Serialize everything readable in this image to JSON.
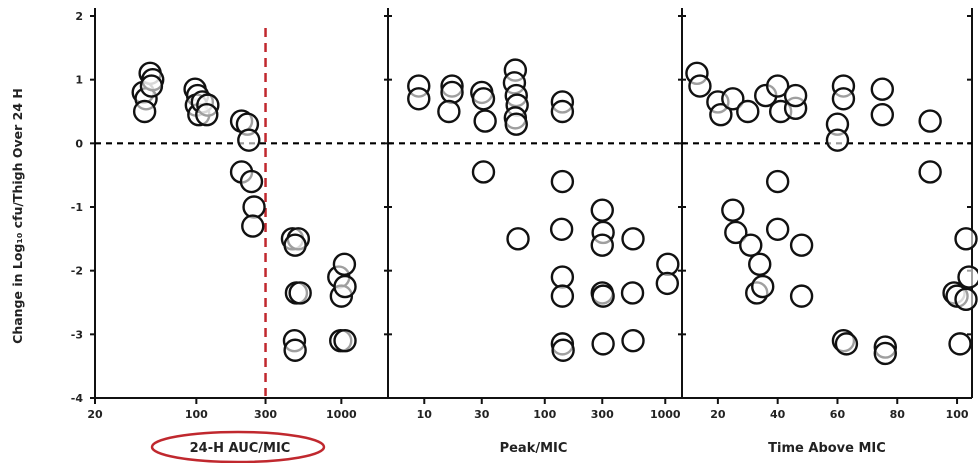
{
  "ylabel": "Change in Log₁₀ cfu/Thigh Over 24 H",
  "annotation_color": "#c0282e",
  "chart_data": [
    {
      "type": "scatter",
      "xlabel": "24-H AUC/MIC",
      "xlabel_circled": true,
      "x_scale": "log",
      "xlim": [
        20,
        2000
      ],
      "ylim": [
        -4,
        2
      ],
      "x_ticks": [
        20,
        100,
        300,
        1000
      ],
      "x_tick_labels": [
        "20",
        "100",
        "300",
        "1000"
      ],
      "y_ticks": [
        2,
        1,
        0,
        -1,
        -2,
        -3,
        -4
      ],
      "y_tick_labels": [
        "2",
        "1",
        "0",
        "-1",
        "-2",
        "-3",
        "-4"
      ],
      "reference_lines": [
        {
          "axis": "y",
          "value": 0,
          "style": "dashed",
          "color": "#000000"
        },
        {
          "axis": "x",
          "value": 300,
          "style": "dashed",
          "color": "#c0282e"
        }
      ],
      "points": [
        [
          43,
          0.8
        ],
        [
          45,
          0.7
        ],
        [
          44,
          0.5
        ],
        [
          48,
          1.1
        ],
        [
          50,
          1.0
        ],
        [
          49,
          0.9
        ],
        [
          98,
          0.85
        ],
        [
          102,
          0.75
        ],
        [
          100,
          0.6
        ],
        [
          104,
          0.45
        ],
        [
          110,
          0.65
        ],
        [
          120,
          0.6
        ],
        [
          118,
          0.45
        ],
        [
          205,
          0.35
        ],
        [
          225,
          0.3
        ],
        [
          230,
          0.05
        ],
        [
          205,
          -0.45
        ],
        [
          240,
          -0.6
        ],
        [
          250,
          -1.0
        ],
        [
          245,
          -1.3
        ],
        [
          460,
          -1.5
        ],
        [
          505,
          -1.5
        ],
        [
          480,
          -1.6
        ],
        [
          490,
          -2.35
        ],
        [
          520,
          -2.35
        ],
        [
          475,
          -3.1
        ],
        [
          480,
          -3.25
        ],
        [
          960,
          -2.1
        ],
        [
          1050,
          -1.9
        ],
        [
          1000,
          -2.4
        ],
        [
          1060,
          -2.25
        ],
        [
          990,
          -3.1
        ],
        [
          1060,
          -3.1
        ]
      ]
    },
    {
      "type": "scatter",
      "xlabel": "Peak/MIC",
      "x_scale": "log",
      "xlim": [
        5,
        1300
      ],
      "ylim": [
        -4,
        2
      ],
      "x_ticks": [
        10,
        30,
        100,
        300,
        1000
      ],
      "x_tick_labels": [
        "10",
        "30",
        "100",
        "300",
        "1000"
      ],
      "reference_lines": [
        {
          "axis": "y",
          "value": 0,
          "style": "dashed",
          "color": "#000000"
        }
      ],
      "points": [
        [
          9,
          0.9
        ],
        [
          9,
          0.7
        ],
        [
          17,
          0.9
        ],
        [
          17,
          0.8
        ],
        [
          16,
          0.5
        ],
        [
          30,
          0.8
        ],
        [
          31,
          0.7
        ],
        [
          32,
          0.35
        ],
        [
          57,
          1.15
        ],
        [
          56,
          0.95
        ],
        [
          58,
          0.75
        ],
        [
          59,
          0.6
        ],
        [
          57,
          0.4
        ],
        [
          58,
          0.3
        ],
        [
          140,
          0.65
        ],
        [
          140,
          0.5
        ],
        [
          31,
          -0.45
        ],
        [
          60,
          -1.5
        ],
        [
          140,
          -0.6
        ],
        [
          138,
          -1.35
        ],
        [
          140,
          -2.1
        ],
        [
          140,
          -2.4
        ],
        [
          140,
          -3.15
        ],
        [
          142,
          -3.25
        ],
        [
          300,
          -1.05
        ],
        [
          305,
          -1.4
        ],
        [
          300,
          -1.6
        ],
        [
          300,
          -2.35
        ],
        [
          305,
          -2.4
        ],
        [
          305,
          -3.15
        ],
        [
          540,
          -1.5
        ],
        [
          535,
          -2.35
        ],
        [
          540,
          -3.1
        ],
        [
          1050,
          -1.9
        ],
        [
          1040,
          -2.2
        ]
      ]
    },
    {
      "type": "scatter",
      "xlabel": "Time Above MIC",
      "x_scale": "linear",
      "xlim": [
        8,
        105
      ],
      "ylim": [
        -4,
        2
      ],
      "x_ticks": [
        20,
        40,
        60,
        80,
        100
      ],
      "x_tick_labels": [
        "20",
        "40",
        "60",
        "80",
        "100"
      ],
      "reference_lines": [
        {
          "axis": "y",
          "value": 0,
          "style": "dashed",
          "color": "#000000"
        }
      ],
      "points": [
        [
          13,
          1.1
        ],
        [
          14,
          0.9
        ],
        [
          20,
          0.65
        ],
        [
          21,
          0.45
        ],
        [
          25,
          0.7
        ],
        [
          30,
          0.5
        ],
        [
          36,
          0.75
        ],
        [
          40,
          0.9
        ],
        [
          41,
          0.5
        ],
        [
          46,
          0.55
        ],
        [
          46,
          0.75
        ],
        [
          60,
          0.3
        ],
        [
          60,
          0.05
        ],
        [
          62,
          0.9
        ],
        [
          62,
          0.7
        ],
        [
          75,
          0.85
        ],
        [
          75,
          0.45
        ],
        [
          91,
          0.35
        ],
        [
          25,
          -1.05
        ],
        [
          26,
          -1.4
        ],
        [
          31,
          -1.6
        ],
        [
          33,
          -2.35
        ],
        [
          34,
          -1.9
        ],
        [
          35,
          -2.25
        ],
        [
          40,
          -0.6
        ],
        [
          40,
          -1.35
        ],
        [
          48,
          -1.6
        ],
        [
          48,
          -2.4
        ],
        [
          62,
          -3.1
        ],
        [
          63,
          -3.15
        ],
        [
          76,
          -3.2
        ],
        [
          76,
          -3.3
        ],
        [
          91,
          -0.45
        ],
        [
          99,
          -2.35
        ],
        [
          100,
          -2.4
        ],
        [
          101,
          -3.15
        ],
        [
          103,
          -1.5
        ],
        [
          104,
          -2.1
        ],
        [
          103,
          -2.45
        ]
      ]
    }
  ]
}
